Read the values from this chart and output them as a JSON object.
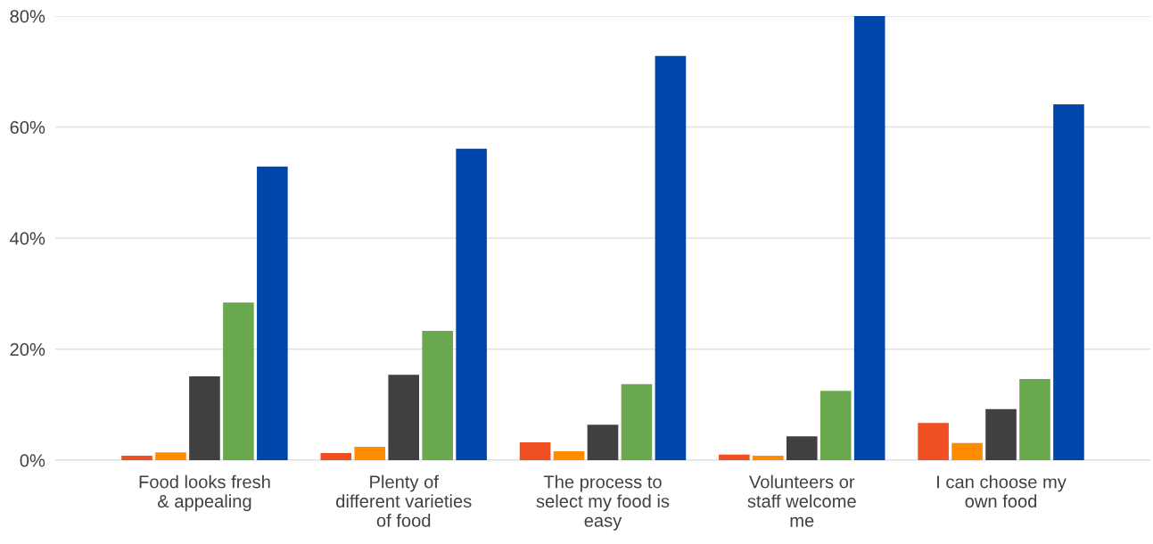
{
  "chart_data": {
    "type": "bar",
    "categories": [
      "Food looks fresh\n& appealing",
      "Plenty of\ndifferent varieties\nof food",
      "The process to\nselect my food is\neasy",
      "Volunteers or\nstaff welcome\nme",
      "I can choose my\nown food"
    ],
    "series": [
      {
        "color": "#f04e23",
        "values": [
          0.8,
          1.3,
          3.2,
          1.0,
          6.7
        ]
      },
      {
        "color": "#ff8c00",
        "values": [
          1.4,
          2.4,
          1.6,
          0.8,
          3.1
        ]
      },
      {
        "color": "#404040",
        "values": [
          15.1,
          15.4,
          6.4,
          4.3,
          9.2
        ]
      },
      {
        "color": "#6aa84f",
        "values": [
          28.4,
          23.3,
          13.7,
          12.5,
          14.6
        ]
      },
      {
        "color": "#0047ab",
        "values": [
          52.9,
          56.1,
          72.8,
          80.0,
          64.1
        ]
      }
    ],
    "ylim": [
      0,
      80
    ],
    "yticks": [
      {
        "value": 0,
        "label": "0%"
      },
      {
        "value": 20,
        "label": "20%"
      },
      {
        "value": 40,
        "label": "40%"
      },
      {
        "value": 60,
        "label": "60%"
      },
      {
        "value": 80,
        "label": "80%"
      }
    ],
    "grid": "y"
  }
}
